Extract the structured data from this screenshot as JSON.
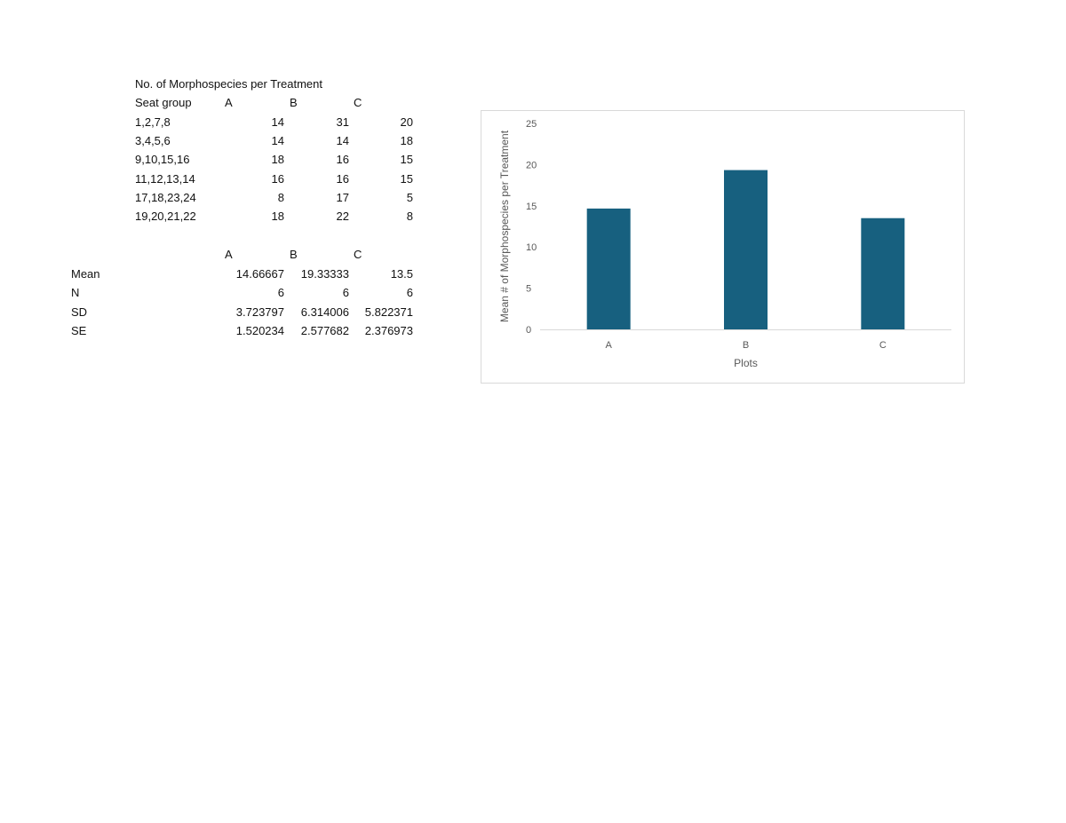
{
  "table1": {
    "title": "No. of Morphospecies per Treatment",
    "headers": [
      "Seat group",
      "A",
      "B",
      "C"
    ],
    "rows": [
      {
        "group": "1,2,7,8",
        "a": "14",
        "b": "31",
        "c": "20"
      },
      {
        "group": "3,4,5,6",
        "a": "14",
        "b": "14",
        "c": "18"
      },
      {
        "group": "9,10,15,16",
        "a": "18",
        "b": "16",
        "c": "15"
      },
      {
        "group": "11,12,13,14",
        "a": "16",
        "b": "16",
        "c": "15"
      },
      {
        "group": "17,18,23,24",
        "a": "8",
        "b": "17",
        "c": "5"
      },
      {
        "group": "19,20,21,22",
        "a": "18",
        "b": "22",
        "c": "8"
      }
    ]
  },
  "table2": {
    "headers": [
      "A",
      "B",
      "C"
    ],
    "rows": [
      {
        "label": "Mean",
        "a": "14.66667",
        "b": "19.33333",
        "c": "13.5"
      },
      {
        "label": "N",
        "a": "6",
        "b": "6",
        "c": "6"
      },
      {
        "label": "SD",
        "a": "3.723797",
        "b": "6.314006",
        "c": "5.822371"
      },
      {
        "label": "SE",
        "a": "1.520234",
        "b": "2.577682",
        "c": "2.376973"
      }
    ]
  },
  "chart_data": {
    "type": "bar",
    "categories": [
      "A",
      "B",
      "C"
    ],
    "values": [
      14.66667,
      19.33333,
      13.5
    ],
    "xlabel": "Plots",
    "ylabel": "Mean # of Morphospecies per Treatment",
    "ylim": [
      0,
      25
    ],
    "yticks": [
      0,
      5,
      10,
      15,
      20,
      25
    ],
    "grid": false,
    "legend": "none",
    "bar_color": "#17607f",
    "axis_color": "#d9d9d9"
  }
}
